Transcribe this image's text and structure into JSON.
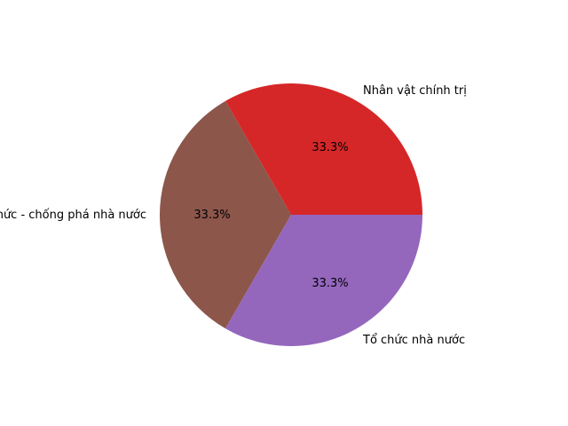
{
  "chart_data": {
    "type": "pie",
    "slices": [
      {
        "label": "Nhân vật chính trị",
        "value": 33.3,
        "pct_label": "33.3%",
        "color": "#d62728"
      },
      {
        "label": "Tổ chức nhà nước",
        "value": 33.3,
        "pct_label": "33.3%",
        "color": "#8c564b"
      },
      {
        "label": "Tổ chức - chống phá nhà nước",
        "value": 33.3,
        "pct_label": "33.3%",
        "color": "#9467bd"
      }
    ]
  }
}
